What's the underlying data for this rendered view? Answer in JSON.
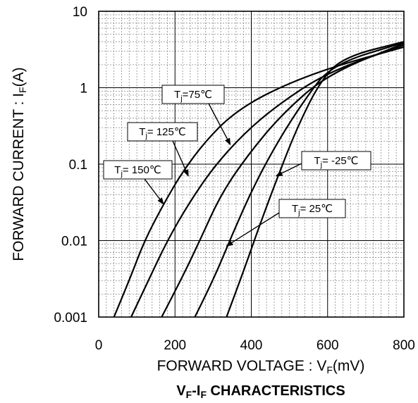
{
  "chart_data": {
    "type": "line",
    "title": "Vₒ-Iₒ CHARACTERISTICS",
    "title_parts": {
      "v": "V",
      "sub_f1": "F",
      "dash_i": "-I",
      "sub_f2": "F",
      "rest": " CHARACTERISTICS"
    },
    "xlabel": "FORWARD VOLTAGE : Vₒ(mV)",
    "xlabel_parts": {
      "main": "FORWARD VOLTAGE : V",
      "sub": "F",
      "unit": "(mV)"
    },
    "ylabel": "FORWARD CURRENT : Iₒ(A)",
    "ylabel_parts": {
      "main": "FORWARD CURRENT : I",
      "sub": "F",
      "unit": "(A)"
    },
    "xlim": [
      0,
      800
    ],
    "ylim": [
      0.001,
      10
    ],
    "y_scale": "log",
    "x_ticks": [
      0,
      200,
      400,
      600,
      800
    ],
    "x_tick_labels": [
      "0",
      "200",
      "400",
      "600",
      "800"
    ],
    "y_ticks": [
      0.001,
      0.01,
      0.1,
      1,
      10
    ],
    "y_tick_labels": [
      "0.001",
      "0.01",
      "0.1",
      "1",
      "10"
    ],
    "grid": true,
    "series": [
      {
        "name": "Tj= 150℃",
        "temp": "150",
        "x": [
          40,
          80,
          120,
          170,
          220,
          280,
          350,
          450,
          600,
          800
        ],
        "y": [
          0.001,
          0.003,
          0.01,
          0.03,
          0.08,
          0.2,
          0.45,
          0.9,
          1.8,
          3.4
        ]
      },
      {
        "name": "Tj= 125℃",
        "temp": "125",
        "x": [
          85,
          130,
          180,
          235,
          300,
          380,
          470,
          600,
          800
        ],
        "y": [
          0.001,
          0.003,
          0.01,
          0.03,
          0.09,
          0.25,
          0.6,
          1.6,
          3.6
        ]
      },
      {
        "name": "Tj=75℃",
        "temp": "75",
        "x": [
          165,
          215,
          265,
          320,
          390,
          480,
          600,
          800
        ],
        "y": [
          0.001,
          0.003,
          0.01,
          0.04,
          0.13,
          0.45,
          1.5,
          3.8
        ]
      },
      {
        "name": "Tj= 25℃",
        "temp": "25",
        "x": [
          252,
          300,
          350,
          405,
          470,
          540,
          610,
          800
        ],
        "y": [
          0.001,
          0.003,
          0.012,
          0.05,
          0.2,
          0.7,
          2.0,
          3.9
        ]
      },
      {
        "name": "Tj= -25℃",
        "temp": "-25",
        "x": [
          335,
          380,
          420,
          470,
          520,
          580,
          640,
          800
        ],
        "y": [
          0.001,
          0.004,
          0.015,
          0.07,
          0.3,
          1.2,
          2.5,
          4.0
        ]
      }
    ],
    "annotations": [
      {
        "label": "Tj= 150℃",
        "pre": "T",
        "sub": "j",
        "post": "= 150℃",
        "arrow_to": [
          170,
          0.03
        ]
      },
      {
        "label": "Tj= 125℃",
        "pre": "T",
        "sub": "j",
        "post": "= 125℃",
        "arrow_to": [
          235,
          0.07
        ]
      },
      {
        "label": "Tj=75℃",
        "pre": "T",
        "sub": "j",
        "post": "=75℃",
        "arrow_to": [
          345,
          0.18
        ]
      },
      {
        "label": "Tj= -25℃",
        "pre": "T",
        "sub": "j",
        "post": "= -25℃",
        "arrow_to": [
          465,
          0.07
        ]
      },
      {
        "label": "Tj= 25℃",
        "pre": "T",
        "sub": "j",
        "post": "= 25℃",
        "arrow_to": [
          335,
          0.0085
        ]
      }
    ]
  }
}
